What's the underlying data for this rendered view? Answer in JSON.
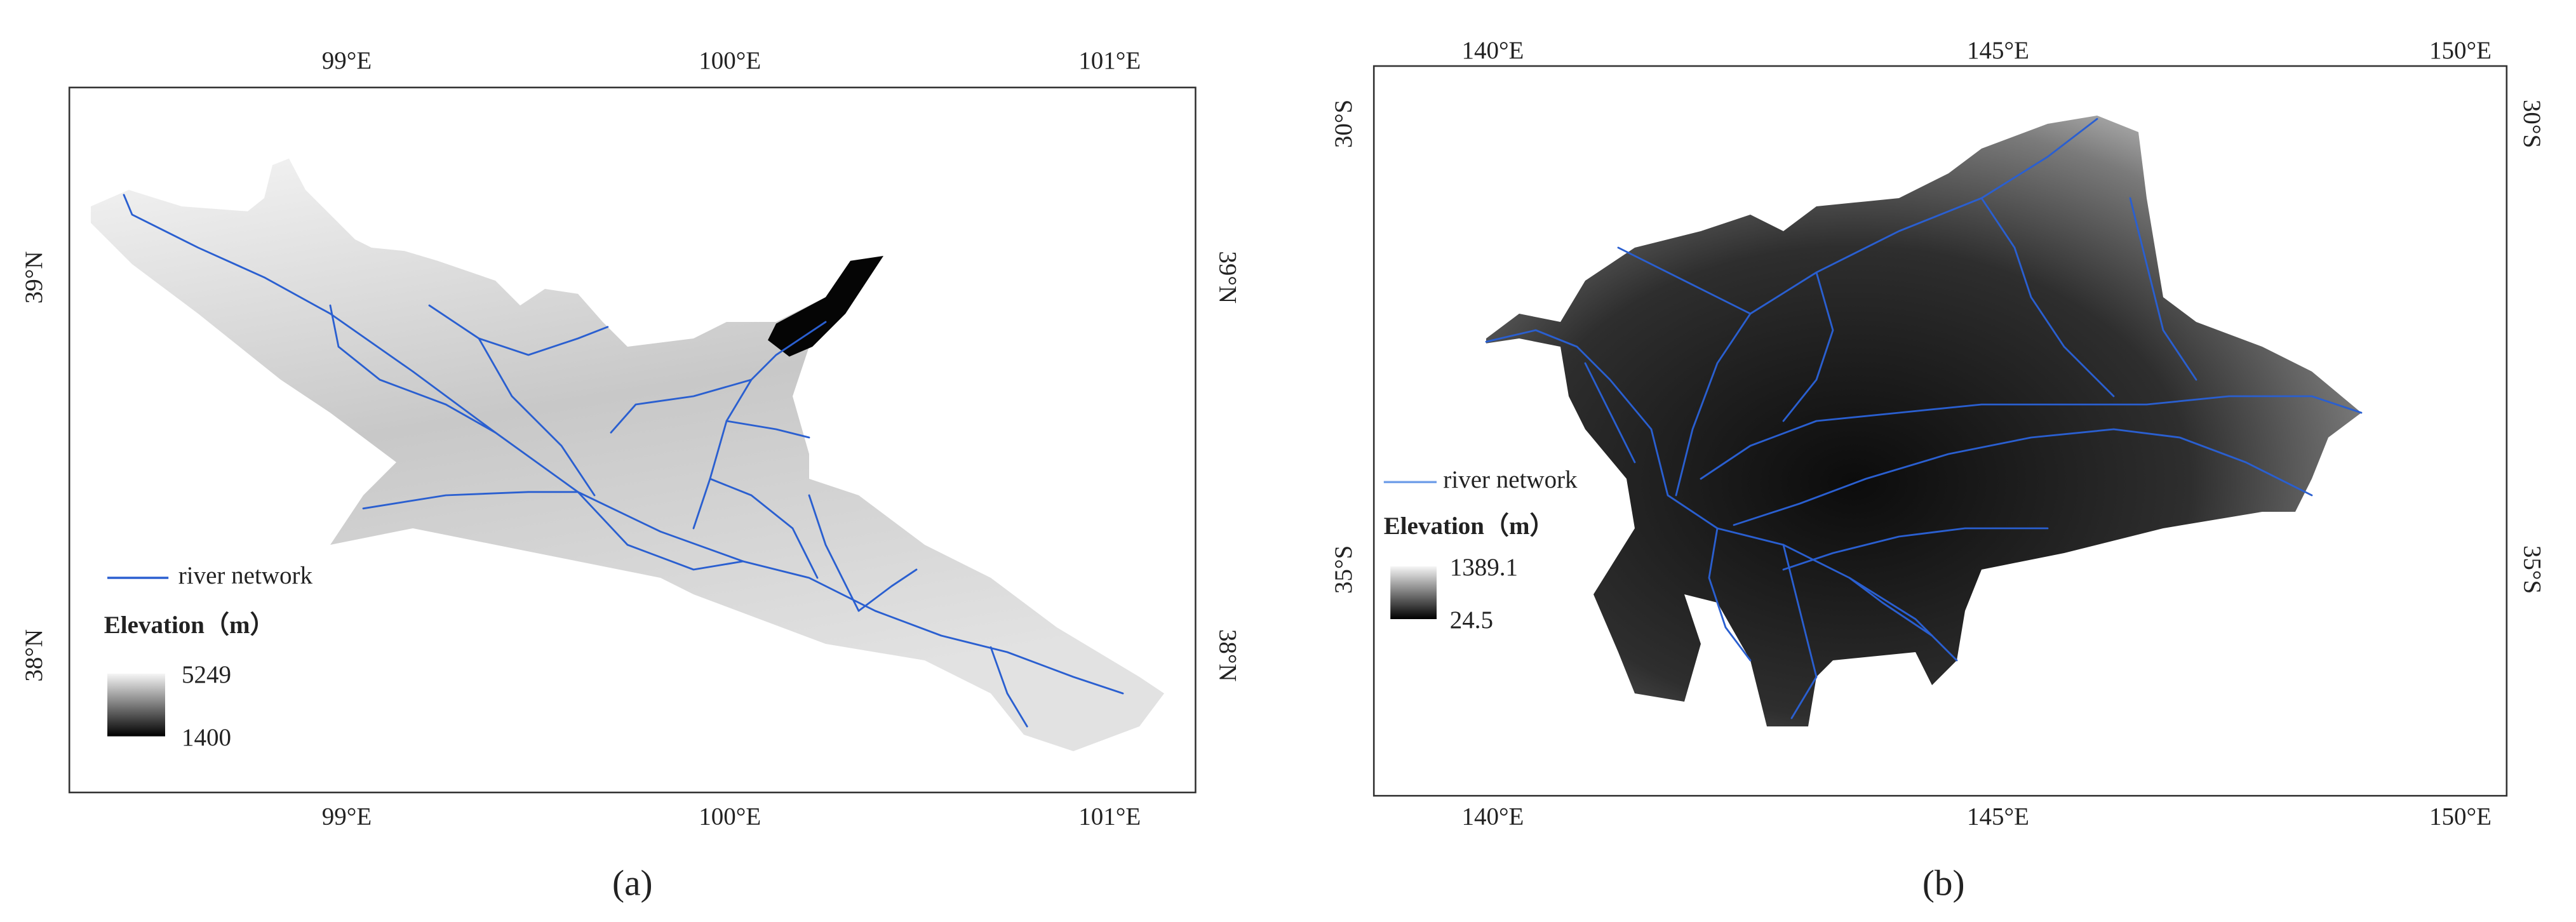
{
  "panels": [
    {
      "label": "(a)",
      "top_ticks": [
        "99°E",
        "100°E",
        "101°E"
      ],
      "bottom_ticks": [
        "99°E",
        "100°E",
        "101°E"
      ],
      "left_ticks": [
        "39°N",
        "38°N"
      ],
      "right_ticks": [
        "39°N",
        "38°N"
      ],
      "legend": {
        "line": "river network",
        "title": "Elevation（m）",
        "max": "5249",
        "min": "1400"
      }
    },
    {
      "label": "(b)",
      "top_ticks": [
        "140°E",
        "145°E",
        "150°E"
      ],
      "bottom_ticks": [
        "140°E",
        "145°E",
        "150°E"
      ],
      "left_ticks": [
        "30°S",
        "35°S"
      ],
      "right_ticks": [
        "30°S",
        "35°S"
      ],
      "legend": {
        "line": "river network",
        "title": "Elevation（m）",
        "max": "1389.1",
        "min": "24.5"
      }
    }
  ]
}
